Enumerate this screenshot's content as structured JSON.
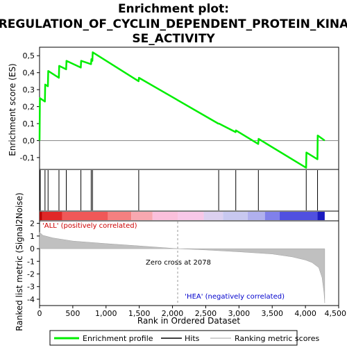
{
  "title_line1": "Enrichment plot:",
  "title_line2": "REGULATION_OF_CYCLIN_DEPENDENT_PROTEIN_KINA",
  "title_line3": "SE_ACTIVITY",
  "ylabel_top": "Enrichment score (ES)",
  "ylabel_bottom": "Ranked list metric (Signal2Noise)",
  "xlabel": "Rank in Ordered Dataset",
  "label_pos": "'ALL' (positively correlated)",
  "label_neg": "'HEA' (negatively correlated)",
  "zero_cross_text": "Zero cross at 2078",
  "legend": {
    "enrichment": "Enrichment profile",
    "hits": "Hits",
    "ranking": "Ranking metric scores"
  },
  "colors": {
    "enrichment_line": "#00ee00",
    "hits": "#000000",
    "ranking_fill": "#c0c0c0",
    "label_pos": "#cc0000",
    "label_neg": "#0000cc"
  },
  "chart_data": {
    "type": "line",
    "x_range": [
      0,
      4500
    ],
    "x_ticks": [
      "0",
      "500",
      "1,000",
      "1,500",
      "2,000",
      "2,500",
      "3,000",
      "3,500",
      "4,000",
      "4,500"
    ],
    "x_tick_values": [
      0,
      500,
      1000,
      1500,
      2000,
      2500,
      3000,
      3500,
      4000,
      4500
    ],
    "es_ylim": [
      -0.17,
      0.55
    ],
    "es_ticks": [
      "0,5",
      "0,4",
      "0,3",
      "0,2",
      "0,1",
      "0,0",
      "-0,1"
    ],
    "es_tick_values": [
      0.5,
      0.4,
      0.3,
      0.2,
      0.1,
      0.0,
      -0.1
    ],
    "es_profile": [
      [
        0,
        0.0
      ],
      [
        5,
        0.25
      ],
      [
        80,
        0.23
      ],
      [
        85,
        0.33
      ],
      [
        125,
        0.32
      ],
      [
        130,
        0.41
      ],
      [
        290,
        0.37
      ],
      [
        295,
        0.44
      ],
      [
        400,
        0.42
      ],
      [
        405,
        0.47
      ],
      [
        620,
        0.43
      ],
      [
        625,
        0.47
      ],
      [
        775,
        0.45
      ],
      [
        780,
        0.48
      ],
      [
        795,
        0.47
      ],
      [
        800,
        0.52
      ],
      [
        1490,
        0.35
      ],
      [
        1495,
        0.37
      ],
      [
        2690,
        0.1
      ],
      [
        2700,
        0.1
      ],
      [
        2950,
        0.05
      ],
      [
        2955,
        0.06
      ],
      [
        3290,
        -0.02
      ],
      [
        3295,
        0.01
      ],
      [
        4010,
        -0.16
      ],
      [
        4015,
        -0.07
      ],
      [
        4180,
        -0.11
      ],
      [
        4185,
        0.03
      ],
      [
        4290,
        0.0
      ]
    ],
    "hits": [
      10,
      82,
      128,
      292,
      402,
      622,
      777,
      797,
      1492,
      2695,
      2952,
      3292,
      4012,
      4182
    ],
    "metric_ylim": [
      -4.5,
      2.2
    ],
    "metric_ticks": [
      "2",
      "1",
      "0",
      "-1",
      "-2",
      "-3",
      "-4"
    ],
    "metric_tick_values": [
      2,
      1,
      0,
      -1,
      -2,
      -3,
      -4
    ],
    "ranking_metric": [
      [
        0,
        1.3
      ],
      [
        50,
        1.05
      ],
      [
        200,
        0.85
      ],
      [
        500,
        0.6
      ],
      [
        1000,
        0.4
      ],
      [
        1500,
        0.22
      ],
      [
        2078,
        0.0
      ],
      [
        2500,
        -0.1
      ],
      [
        3000,
        -0.25
      ],
      [
        3500,
        -0.42
      ],
      [
        3800,
        -0.65
      ],
      [
        4000,
        -0.9
      ],
      [
        4100,
        -1.1
      ],
      [
        4200,
        -1.5
      ],
      [
        4250,
        -2.3
      ],
      [
        4280,
        -3.5
      ],
      [
        4290,
        -4.3
      ]
    ],
    "zero_cross": 2078,
    "total": 4290
  }
}
